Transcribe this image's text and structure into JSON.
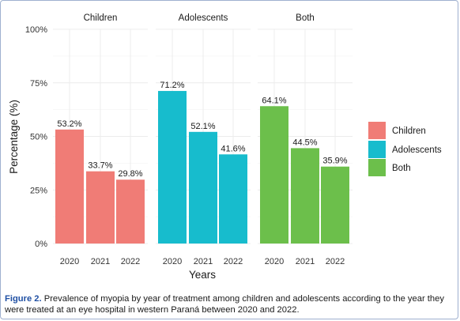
{
  "chart_data": {
    "type": "bar",
    "panels": [
      "Children",
      "Adolescents",
      "Both"
    ],
    "categories": [
      "2020",
      "2021",
      "2022"
    ],
    "series": [
      {
        "name": "Children",
        "values": [
          53.2,
          33.7,
          29.8
        ],
        "labels": [
          "53.2%",
          "33.7%",
          "29.8%"
        ],
        "color": "#f07c76"
      },
      {
        "name": "Adolescents",
        "values": [
          71.2,
          52.1,
          41.6
        ],
        "labels": [
          "71.2%",
          "52.1%",
          "41.6%"
        ],
        "color": "#17bccd"
      },
      {
        "name": "Both",
        "values": [
          64.1,
          44.5,
          35.9
        ],
        "labels": [
          "64.1%",
          "44.5%",
          "35.9%"
        ],
        "color": "#6cbf4b"
      }
    ],
    "ylim": [
      0,
      100
    ],
    "yticks": [
      0,
      25,
      50,
      75,
      100
    ],
    "ytick_labels": [
      "0%",
      "25%",
      "50%",
      "75%",
      "100%"
    ],
    "xlabel": "Years",
    "ylabel": "Percentage (%)",
    "legend_position": "right",
    "grid": true
  },
  "caption": {
    "label": "Figure 2.",
    "text": " Prevalence of myopia by year of treatment among children and adolescents according to the year they were treated at an eye hospital in western Paraná between 2020 and 2022."
  }
}
